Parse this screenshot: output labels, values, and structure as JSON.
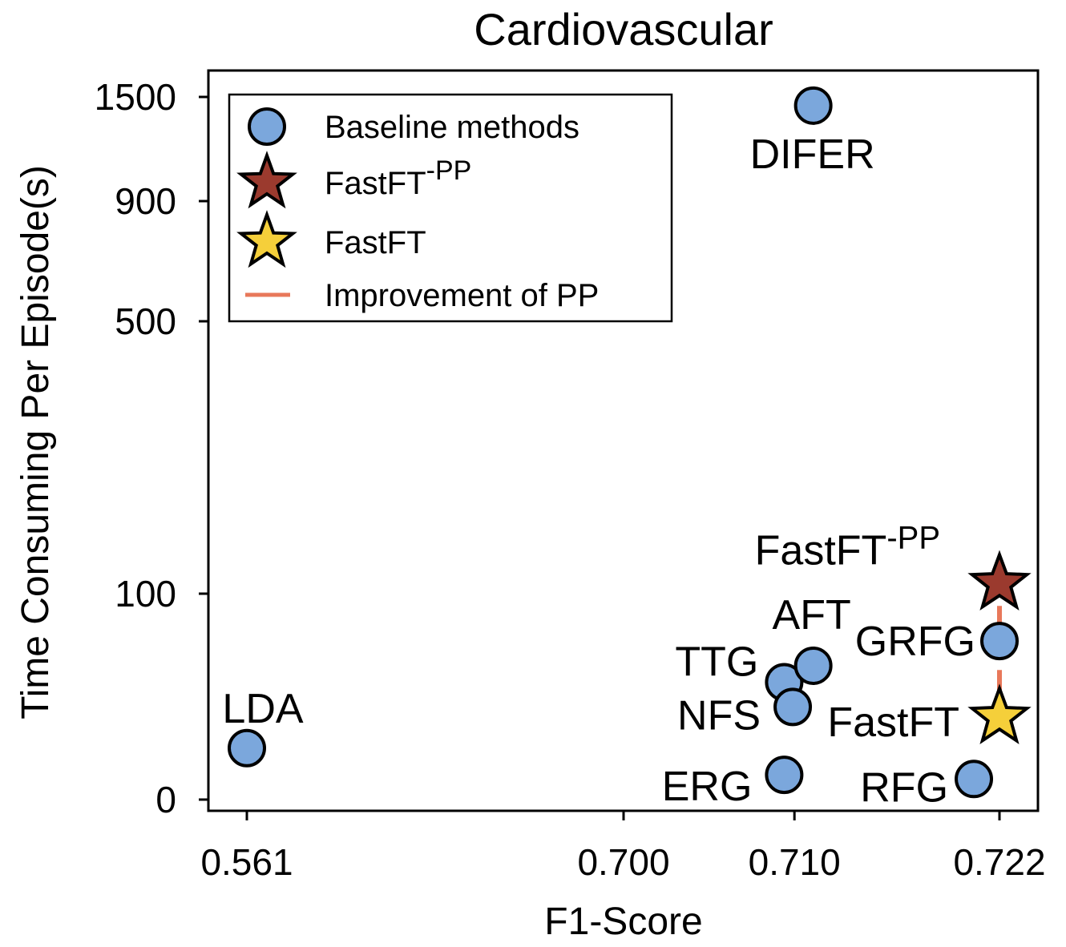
{
  "chart_data": {
    "type": "scatter",
    "title": "Cardiovascular",
    "xlabel": "F1-Score",
    "ylabel": "Time Consuming Per Episode(s)",
    "x_ticks": [
      {
        "value": 0.561,
        "label": "0.561"
      },
      {
        "value": 0.7,
        "label": "0.700"
      },
      {
        "value": 0.71,
        "label": "0.710"
      },
      {
        "value": 0.722,
        "label": "0.722"
      }
    ],
    "y_ticks": [
      {
        "value": 0,
        "label": "0"
      },
      {
        "value": 100,
        "label": "100"
      },
      {
        "value": 500,
        "label": "500"
      },
      {
        "value": 900,
        "label": "900"
      },
      {
        "value": 1500,
        "label": "1500"
      }
    ],
    "points": [
      {
        "name": "LDA",
        "label": "LDA",
        "x": 0.561,
        "y": 25,
        "marker": "circle",
        "series": "Baseline methods"
      },
      {
        "name": "ERG",
        "label": "ERG",
        "x": 0.7094,
        "y": 12,
        "marker": "circle",
        "series": "Baseline methods"
      },
      {
        "name": "TTG",
        "label": "TTG",
        "x": 0.7094,
        "y": 57,
        "marker": "circle",
        "series": "Baseline methods"
      },
      {
        "name": "NFS",
        "label": "NFS",
        "x": 0.7099,
        "y": 45,
        "marker": "circle",
        "series": "Baseline methods"
      },
      {
        "name": "AFT",
        "label": "AFT",
        "x": 0.7111,
        "y": 65,
        "marker": "circle",
        "series": "Baseline methods"
      },
      {
        "name": "DIFER",
        "label": "DIFER",
        "x": 0.7111,
        "y": 1450,
        "marker": "circle",
        "series": "Baseline methods"
      },
      {
        "name": "RFG",
        "label": "RFG",
        "x": 0.7205,
        "y": 10,
        "marker": "circle",
        "series": "Baseline methods"
      },
      {
        "name": "GRFG",
        "label": "GRFG",
        "x": 0.722,
        "y": 77,
        "marker": "circle",
        "series": "Baseline methods"
      },
      {
        "name": "FastFT-PP",
        "label": "FastFT",
        "label_sup": "-PP",
        "x": 0.722,
        "y": 115,
        "marker": "star",
        "series": "FastFT-PP"
      },
      {
        "name": "FastFT",
        "label": "FastFT",
        "x": 0.722,
        "y": 40,
        "marker": "star",
        "series": "FastFT"
      }
    ],
    "improvement_line": {
      "x": 0.722,
      "y_from": 40,
      "y_to": 115
    },
    "legend": {
      "position": "top-left",
      "entries": [
        {
          "label": "Baseline methods",
          "marker": "circle"
        },
        {
          "label": "FastFT",
          "label_sup": "-PP",
          "marker": "star-pp"
        },
        {
          "label": "FastFT",
          "marker": "star"
        },
        {
          "label": "Improvement of PP",
          "marker": "line"
        }
      ]
    },
    "colors": {
      "baseline": "#7ba7dc",
      "fastft_pp": "#9b3a2e",
      "fastft": "#f5cf3a",
      "improvement": "#e8785a",
      "outline": "#000000"
    }
  }
}
